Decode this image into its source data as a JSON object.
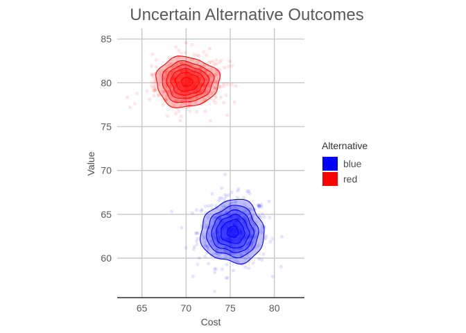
{
  "chart_data": {
    "type": "scatter",
    "title": "Uncertain Alternative Outcomes",
    "xlabel": "Cost",
    "ylabel": "Value",
    "xlim": [
      62.2,
      83.4
    ],
    "ylim": [
      55.5,
      86.2
    ],
    "xticks": [
      65,
      70,
      75,
      80
    ],
    "yticks": [
      60,
      65,
      70,
      75,
      80,
      85
    ],
    "grid": true,
    "legend": {
      "title": "Alternative",
      "placement": "right"
    },
    "series": [
      {
        "name": "blue",
        "color": "#0000ff",
        "mean_x": 75.3,
        "mean_y": 63.0,
        "sd_x": 2.0,
        "sd_y": 2.0,
        "density_levels": [
          0.2,
          0.35,
          0.5,
          0.65,
          0.8,
          0.95
        ]
      },
      {
        "name": "red",
        "color": "#ff0000",
        "mean_x": 70.1,
        "mean_y": 80.1,
        "sd_x": 2.0,
        "sd_y": 1.6,
        "density_levels": [
          0.2,
          0.35,
          0.5,
          0.65,
          0.8,
          0.95
        ]
      }
    ]
  }
}
